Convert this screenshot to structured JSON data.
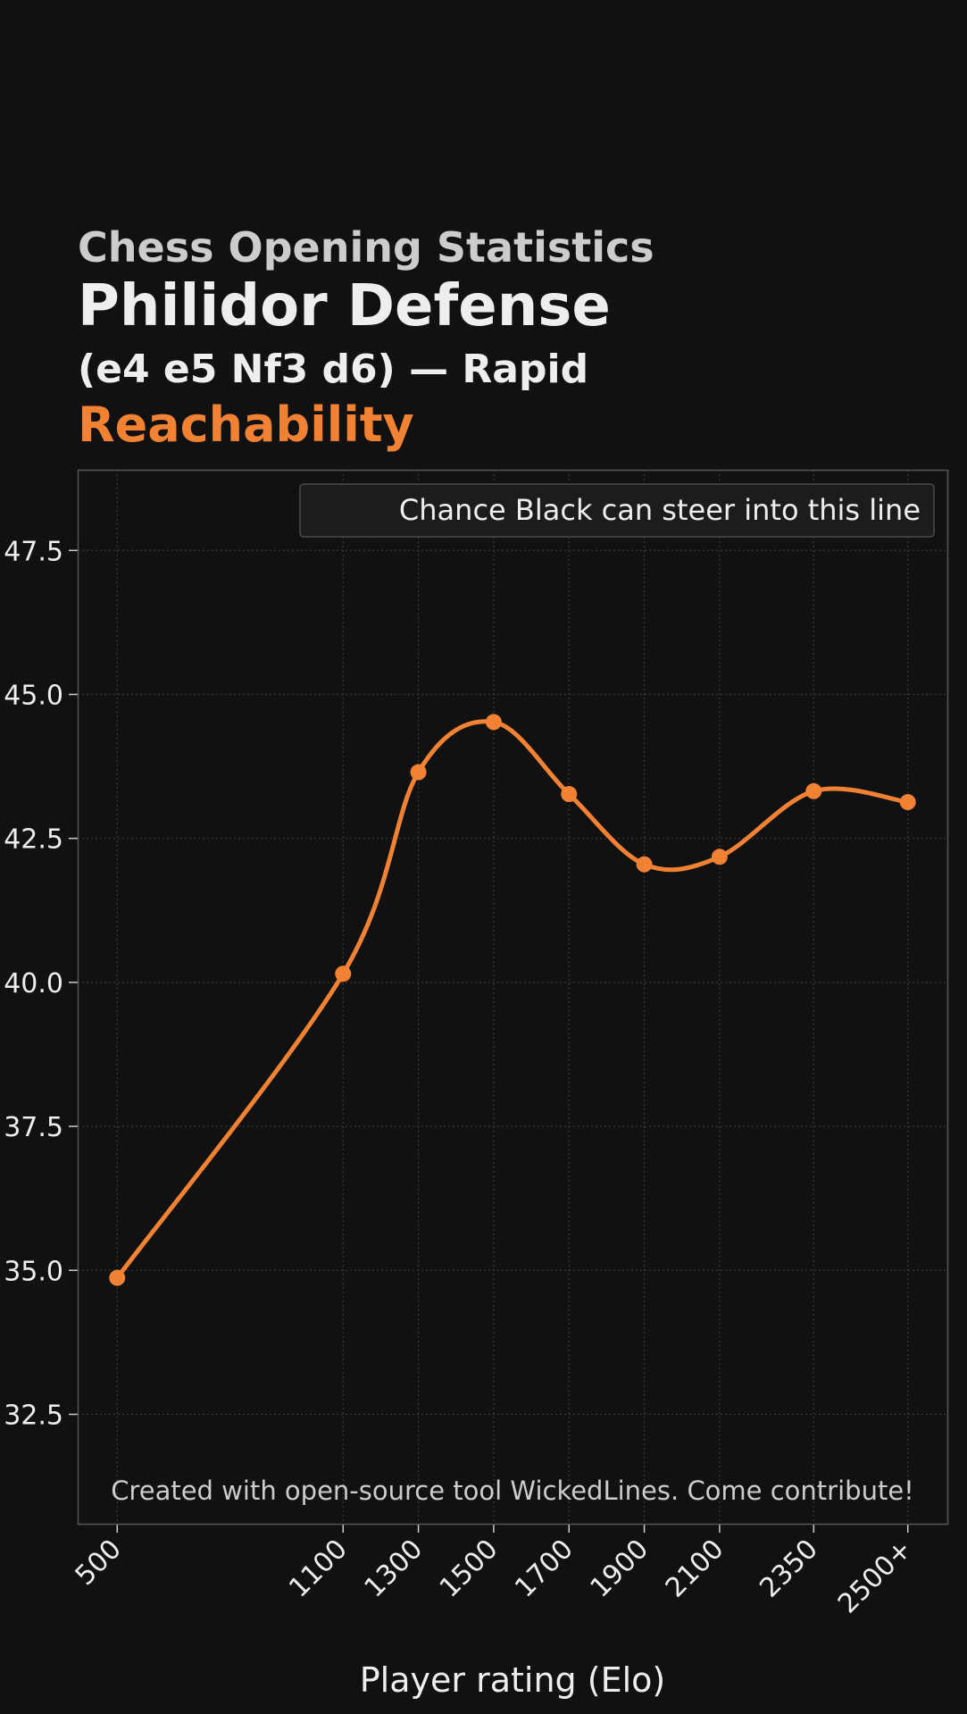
{
  "header": {
    "supertitle": "Chess Opening Statistics",
    "title": "Philidor Defense",
    "subtitle": "(e4 e5 Nf3 d6) — Rapid",
    "metric": "Reachability"
  },
  "footer": {
    "credit": "Created with open-source tool WickedLines. Come contribute!"
  },
  "colors": {
    "background": "#111111",
    "accent": "#f28233",
    "text": "#eeeeee",
    "muted": "#cccccc",
    "grid": "#3a3a3a",
    "frame": "#555555"
  },
  "chart_data": {
    "type": "line",
    "title": "Reachability",
    "xlabel": "Player rating (Elo)",
    "ylabel": "",
    "x": [
      "500",
      "1100",
      "1300",
      "1500",
      "1700",
      "1900",
      "2100",
      "2350",
      "2500+"
    ],
    "x_numeric": [
      500,
      1100,
      1300,
      1500,
      1700,
      1900,
      2100,
      2350,
      2600
    ],
    "xlim": [
      395,
      2705
    ],
    "ylim": [
      30.6,
      48.9
    ],
    "yticks": [
      32.5,
      35.0,
      37.5,
      40.0,
      42.5,
      45.0,
      47.5
    ],
    "grid": true,
    "legend_position": "top-right",
    "smooth": true,
    "series": [
      {
        "name": "Chance Black can steer into this line",
        "color": "#f28233",
        "values": [
          34.87,
          40.15,
          43.65,
          44.52,
          43.27,
          42.05,
          42.18,
          43.32,
          43.13
        ]
      }
    ]
  }
}
